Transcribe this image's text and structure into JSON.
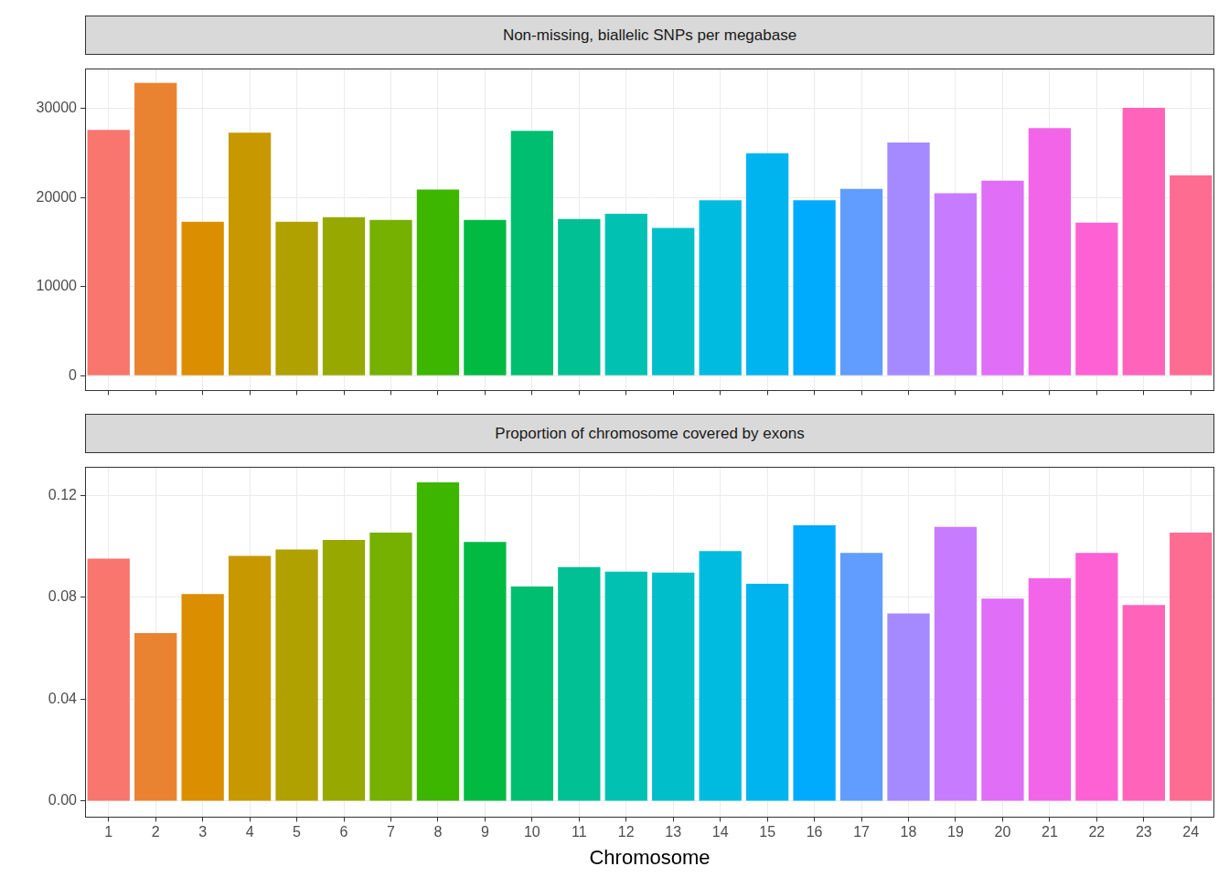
{
  "chart_data": [
    {
      "type": "bar",
      "title": "Non-missing, biallelic SNPs per megabase",
      "categories": [
        "1",
        "2",
        "3",
        "4",
        "5",
        "6",
        "7",
        "8",
        "9",
        "10",
        "11",
        "12",
        "13",
        "14",
        "15",
        "16",
        "17",
        "18",
        "19",
        "20",
        "21",
        "22",
        "23",
        "24"
      ],
      "values": [
        27600,
        32900,
        17300,
        27300,
        17300,
        17800,
        17500,
        20900,
        17500,
        27500,
        17600,
        18200,
        16600,
        19700,
        25000,
        19700,
        21000,
        26200,
        20500,
        21900,
        27800,
        17200,
        30100,
        22500
      ],
      "colors": [
        "#F8766D",
        "#EA8331",
        "#DB8E00",
        "#C79800",
        "#B0A100",
        "#97A900",
        "#76B000",
        "#3DB600",
        "#00BA42",
        "#00BE70",
        "#00C094",
        "#00C1B2",
        "#00BFCA",
        "#00BBE0",
        "#00B4F0",
        "#00ABFD",
        "#619CFF",
        "#A58AFF",
        "#C77CFF",
        "#E06EF7",
        "#F265E8",
        "#FE61D4",
        "#FF64BA",
        "#FF6C91"
      ],
      "ylim": [
        -1645,
        34545
      ],
      "yticks": [
        0,
        10000,
        20000,
        30000
      ],
      "grid": true,
      "tick_labels": "y"
    },
    {
      "type": "bar",
      "title": "Proportion of chromosome covered by exons",
      "x_label": "Chromosome",
      "categories": [
        "1",
        "2",
        "3",
        "4",
        "5",
        "6",
        "7",
        "8",
        "9",
        "10",
        "11",
        "12",
        "13",
        "14",
        "15",
        "16",
        "17",
        "18",
        "19",
        "20",
        "21",
        "22",
        "23",
        "24"
      ],
      "values": [
        0.0952,
        0.066,
        0.0813,
        0.0963,
        0.0988,
        0.1025,
        0.1054,
        0.1251,
        0.1017,
        0.0842,
        0.0919,
        0.0901,
        0.0897,
        0.0981,
        0.0853,
        0.1083,
        0.0974,
        0.0737,
        0.1076,
        0.0795,
        0.0875,
        0.0974,
        0.077,
        0.1054
      ],
      "colors": [
        "#F8766D",
        "#EA8331",
        "#DB8E00",
        "#C79800",
        "#B0A100",
        "#97A900",
        "#76B000",
        "#3DB600",
        "#00BA42",
        "#00BE70",
        "#00C094",
        "#00C1B2",
        "#00BFCA",
        "#00BBE0",
        "#00B4F0",
        "#00ABFD",
        "#619CFF",
        "#A58AFF",
        "#C77CFF",
        "#E06EF7",
        "#F265E8",
        "#FE61D4",
        "#FF64BA",
        "#FF6C91"
      ],
      "ylim": [
        -0.00626,
        0.13136
      ],
      "yticks": [
        {
          "value": 0,
          "label": "0.00"
        },
        {
          "value": 0.04,
          "label": "0.04"
        },
        {
          "value": 0.08,
          "label": "0.08"
        },
        {
          "value": 0.12,
          "label": "0.12"
        }
      ],
      "grid": true
    }
  ]
}
